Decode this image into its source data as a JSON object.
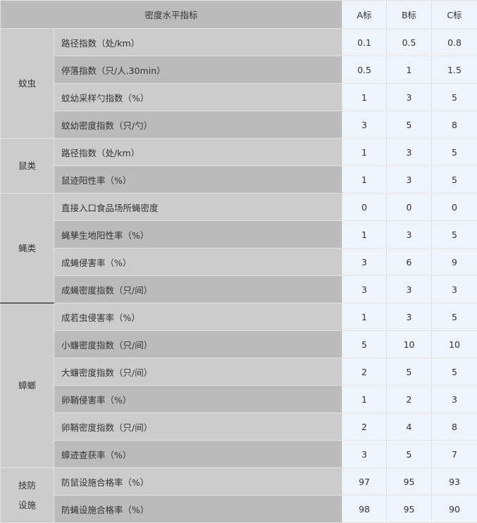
{
  "header": {
    "indicator": "密度水平指标",
    "a": "A标",
    "b": "B标",
    "c": "C标"
  },
  "groups": [
    {
      "name": "蚊虫",
      "rows": [
        {
          "label": "路径指数（处/km）",
          "values": [
            "0.1",
            "0.5",
            "0.8"
          ]
        },
        {
          "label": "停落指数（只/人.30min）",
          "values": [
            "0.5",
            "1",
            "1.5"
          ]
        },
        {
          "label": "蚊幼采样勺指数（%）",
          "values": [
            "1",
            "3",
            "5"
          ]
        },
        {
          "label": "蚊幼密度指数（只/勺）",
          "values": [
            "3",
            "5",
            "8"
          ]
        }
      ]
    },
    {
      "name": "鼠类",
      "rows": [
        {
          "label": "路径指数（处/km）",
          "values": [
            "1",
            "3",
            "5"
          ]
        },
        {
          "label": "鼠迹阳性率（%）",
          "values": [
            "1",
            "3",
            "5"
          ]
        }
      ]
    },
    {
      "name": "蝇类",
      "rows": [
        {
          "label": "直接入口食品场所蝇密度",
          "values": [
            "0",
            "0",
            "0"
          ]
        },
        {
          "label": "蝇孳生地阳性率（%）",
          "values": [
            "1",
            "3",
            "5"
          ]
        },
        {
          "label": "成蝇侵害率（%）",
          "values": [
            "3",
            "6",
            "9"
          ]
        },
        {
          "label": "成蝇密度指数（只/间）",
          "values": [
            "3",
            "3",
            "3"
          ]
        }
      ]
    },
    {
      "name": "蟑螂",
      "rows": [
        {
          "label": "成若虫侵害率（%）",
          "values": [
            "1",
            "3",
            "5"
          ]
        },
        {
          "label": "小蠊密度指数（只/间）",
          "values": [
            "5",
            "10",
            "10"
          ]
        },
        {
          "label": "大蠊密度指数（只/间）",
          "values": [
            "2",
            "5",
            "5"
          ]
        },
        {
          "label": "卵鞘侵害率（%）",
          "values": [
            "1",
            "2",
            "3"
          ]
        },
        {
          "label": "卵鞘密度指数（只/间）",
          "values": [
            "2",
            "4",
            "8"
          ]
        },
        {
          "label": "蟑迹查获率（%）",
          "values": [
            "3",
            "5",
            "7"
          ]
        }
      ]
    },
    {
      "name": "技防设施",
      "name_lines": [
        "技防",
        "设施"
      ],
      "rows": [
        {
          "label": "防鼠设施合格率（%）",
          "values": [
            "97",
            "95",
            "93"
          ]
        },
        {
          "label": "防蝇设施合格率（%）",
          "values": [
            "98",
            "95",
            "90"
          ]
        }
      ]
    }
  ]
}
